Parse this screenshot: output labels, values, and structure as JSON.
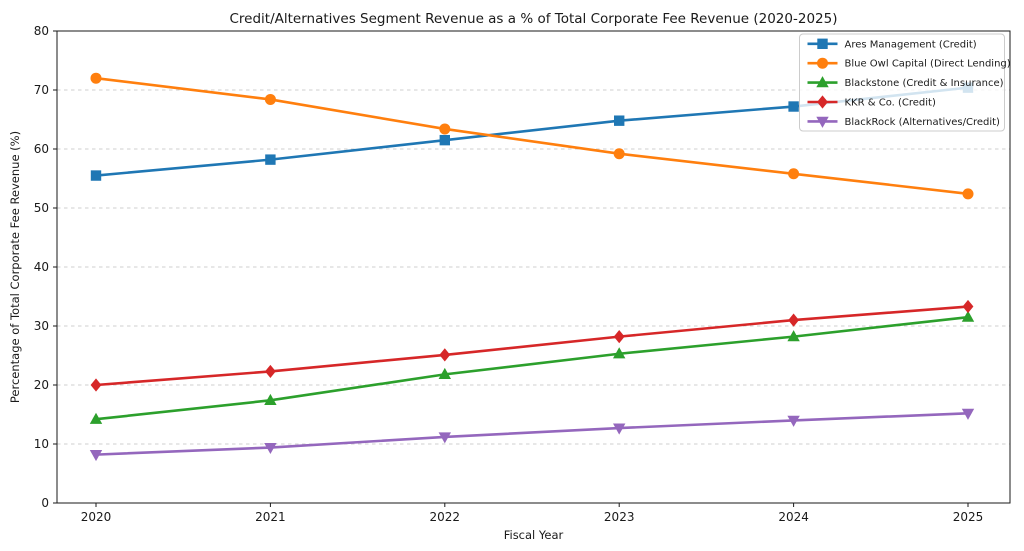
{
  "figure": {
    "title": "Credit/Alternatives Segment Revenue as a % of Total Corporate Fee Revenue (2020-2025)",
    "xlabel": "Fiscal Year",
    "ylabel": "Percentage of Total Corporate Fee Revenue (%)"
  },
  "chart_data": {
    "type": "line",
    "title": "Credit/Alternatives Segment Revenue as a % of Total Corporate Fee Revenue (2020-2025)",
    "xlabel": "Fiscal Year",
    "ylabel": "Percentage of Total Corporate Fee Revenue (%)",
    "categories": [
      "2020",
      "2021",
      "2022",
      "2023",
      "2024",
      "2025"
    ],
    "ylim": [
      0,
      80
    ],
    "yticks": [
      0,
      10,
      20,
      30,
      40,
      50,
      60,
      70,
      80
    ],
    "grid": "horizontal-dashed",
    "legend_position": "upper-right",
    "series": [
      {
        "name": "Ares Management (Credit)",
        "color": "#1f77b4",
        "marker": "square",
        "values": [
          55.5,
          58.2,
          61.5,
          64.8,
          67.2,
          70.4
        ]
      },
      {
        "name": "Blue Owl Capital (Direct Lending)",
        "color": "#ff7f0e",
        "marker": "circle",
        "values": [
          72.0,
          68.4,
          63.4,
          59.2,
          55.8,
          52.4
        ]
      },
      {
        "name": "Blackstone (Credit & Insurance)",
        "color": "#2ca02c",
        "marker": "triangle-up",
        "values": [
          14.2,
          17.4,
          21.8,
          25.3,
          28.2,
          31.5
        ]
      },
      {
        "name": "KKR & Co. (Credit)",
        "color": "#d62728",
        "marker": "diamond",
        "values": [
          20.0,
          22.3,
          25.1,
          28.2,
          31.0,
          33.3
        ]
      },
      {
        "name": "BlackRock (Alternatives/Credit)",
        "color": "#9467bd",
        "marker": "triangle-down",
        "values": [
          8.2,
          9.4,
          11.2,
          12.7,
          14.0,
          15.2
        ]
      }
    ]
  },
  "style": {
    "axis_color": "#1a1a1a",
    "grid_color": "#cfcfcf",
    "legend_border_color": "#cccccc",
    "legend_fill": "rgba(255,255,255,0.8)",
    "background": "#ffffff"
  }
}
